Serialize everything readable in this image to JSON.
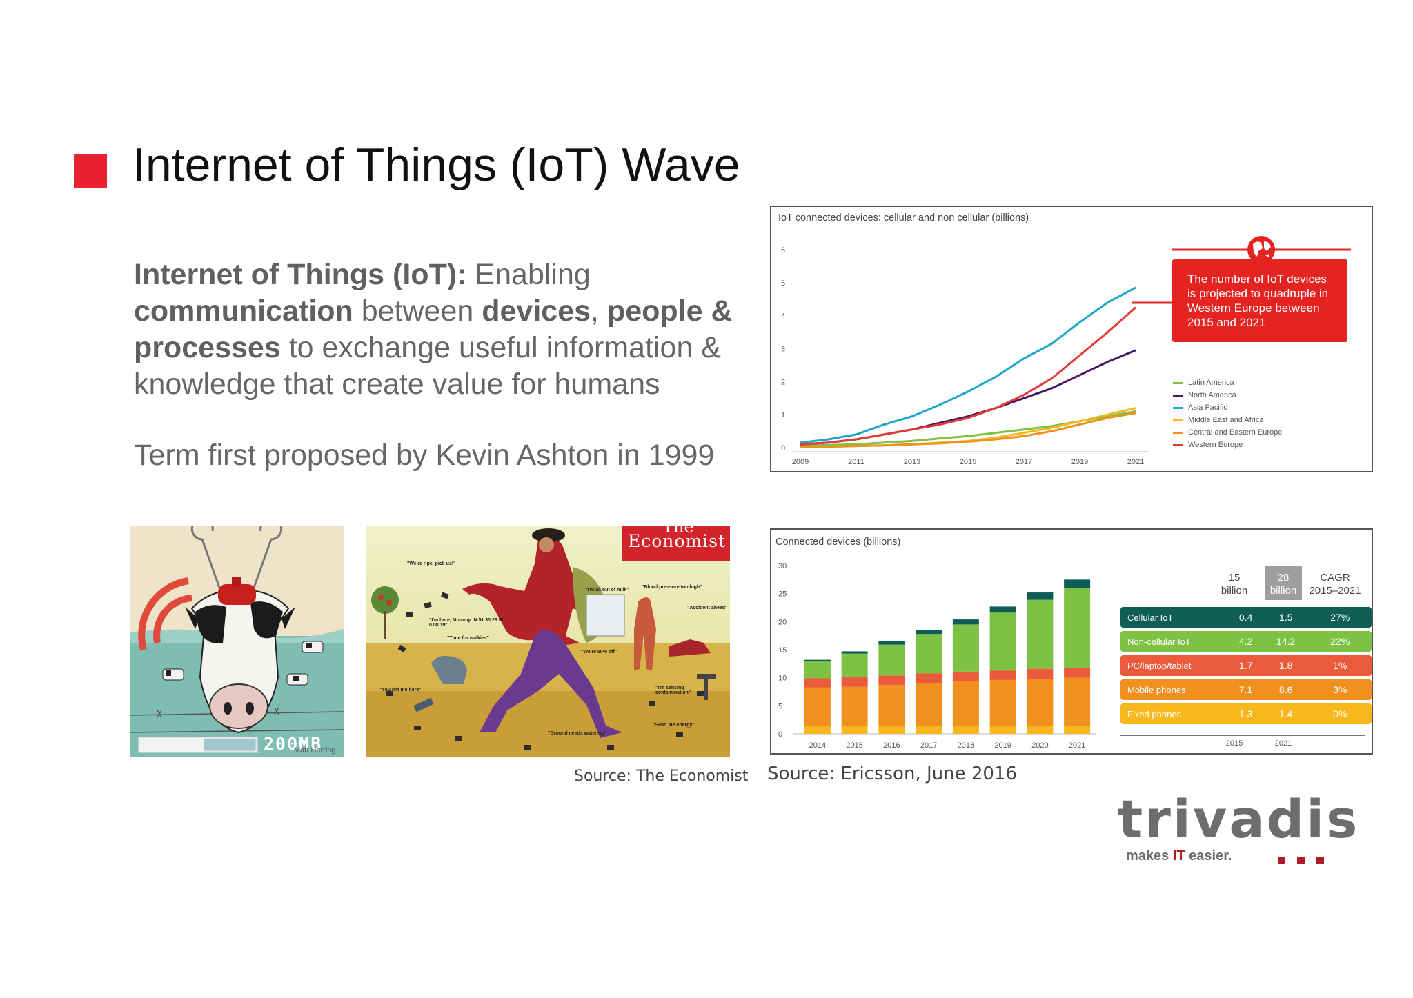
{
  "slide": {
    "title": "Internet of Things (IoT) Wave",
    "definition": {
      "term": "Internet of Things (IoT):",
      "t1": " Enabling ",
      "b1": "communication",
      "t2": " between ",
      "b2": "devices",
      "t3": ", ",
      "b3": "people & processes",
      "t4": " to exchange useful information & knowledge that create value for humans"
    },
    "term_origin": "Term first proposed by Kevin Ashton in 1999",
    "cow_image": {
      "progress_label": "200MB",
      "signature": "Matt Herring",
      "progress_fraction": 0.55
    },
    "economist_image": {
      "brand_top": "The",
      "brand": "Economist",
      "captions": [
        "\"We're ripe, pick us!\"",
        "\"I'm all out of milk\"",
        "\"Blood pressure too high\"",
        "\"Accident ahead\"",
        "\"I'm here, Mummy: N 51 30.26 W 0 08.19\"",
        "\"Time for walkies\"",
        "\"We're 50% off\"",
        "\"You left me here\"",
        "\"I'm sensing contamination\"",
        "\"Send me energy\"",
        "\"Ground needs watering\""
      ]
    },
    "source_economist": "Source: The Economist",
    "source_ericsson": "Source: Ericsson, June 2016",
    "logo": {
      "name": "trivadis",
      "tagline_a": "makes ",
      "tagline_b": "IT",
      "tagline_c": " easier."
    },
    "colors": {
      "accent_red": "#e8202f",
      "brand_red": "#b11b28",
      "brand_gray": "#6d6d6d"
    }
  },
  "chart_data": [
    {
      "type": "line",
      "title": "IoT connected devices: cellular and non cellular (billions)",
      "x": [
        2009,
        2010,
        2011,
        2012,
        2013,
        2014,
        2015,
        2016,
        2017,
        2018,
        2019,
        2020,
        2021
      ],
      "x_ticks": [
        "2009",
        "2011",
        "2013",
        "2015",
        "2017",
        "2019",
        "2021"
      ],
      "y_ticks": [
        "0",
        "1",
        "2",
        "3",
        "4",
        "5",
        "6"
      ],
      "ylim": [
        0,
        6
      ],
      "grid": false,
      "legend_position": "right",
      "series": [
        {
          "name": "Latin America",
          "color": "#7dc242",
          "values": [
            0.05,
            0.08,
            0.1,
            0.15,
            0.2,
            0.28,
            0.35,
            0.45,
            0.55,
            0.65,
            0.8,
            0.95,
            1.1
          ]
        },
        {
          "name": "North America",
          "color": "#4a1563",
          "values": [
            0.1,
            0.15,
            0.25,
            0.4,
            0.55,
            0.75,
            0.95,
            1.2,
            1.5,
            1.8,
            2.2,
            2.6,
            2.95
          ]
        },
        {
          "name": "Asia Pacific",
          "color": "#1ca6c9",
          "values": [
            0.15,
            0.25,
            0.4,
            0.7,
            0.95,
            1.3,
            1.7,
            2.15,
            2.7,
            3.15,
            3.8,
            4.4,
            4.85
          ]
        },
        {
          "name": "Middle East and Africa",
          "color": "#f7b81d",
          "values": [
            0.02,
            0.03,
            0.05,
            0.07,
            0.1,
            0.15,
            0.2,
            0.3,
            0.45,
            0.6,
            0.8,
            1.0,
            1.2
          ]
        },
        {
          "name": "Central and Eastern Europe",
          "color": "#f0901e",
          "values": [
            0.02,
            0.03,
            0.05,
            0.07,
            0.1,
            0.13,
            0.18,
            0.25,
            0.35,
            0.5,
            0.7,
            0.9,
            1.05
          ]
        },
        {
          "name": "Western Europe",
          "color": "#e23b36",
          "values": [
            0.1,
            0.15,
            0.25,
            0.4,
            0.55,
            0.7,
            0.9,
            1.2,
            1.6,
            2.1,
            2.8,
            3.5,
            4.25
          ]
        }
      ],
      "callout": "The number of IoT devices is projected to quadruple in Western Europe between 2015 and 2021"
    },
    {
      "type": "bar",
      "title": "Connected devices (billions)",
      "stacked": true,
      "categories": [
        "2014",
        "2015",
        "2016",
        "2017",
        "2018",
        "2019",
        "2020",
        "2021"
      ],
      "ylim": [
        0,
        30
      ],
      "y_ticks": [
        "0",
        "5",
        "10",
        "15",
        "20",
        "25",
        "30"
      ],
      "series": [
        {
          "name": "Fixed phones",
          "color": "#f7b81d",
          "values": [
            1.3,
            1.3,
            1.3,
            1.3,
            1.3,
            1.3,
            1.3,
            1.4
          ]
        },
        {
          "name": "Mobile phones",
          "color": "#f0901e",
          "values": [
            7.0,
            7.1,
            7.4,
            7.8,
            8.1,
            8.3,
            8.5,
            8.6
          ]
        },
        {
          "name": "PC/laptop/tablet",
          "color": "#ea5b3c",
          "values": [
            1.6,
            1.7,
            1.7,
            1.7,
            1.7,
            1.7,
            1.8,
            1.8
          ]
        },
        {
          "name": "Non-cellular IoT",
          "color": "#7dc242",
          "values": [
            3.0,
            4.2,
            5.5,
            7.0,
            8.4,
            10.3,
            12.3,
            14.2
          ]
        },
        {
          "name": "Cellular IoT",
          "color": "#0f5e56",
          "values": [
            0.3,
            0.4,
            0.6,
            0.7,
            0.9,
            1.1,
            1.3,
            1.5
          ]
        }
      ],
      "table": {
        "headers": {
          "h2015": "15 billion",
          "h2021": "28 billion",
          "cagr": "CAGR 2015–2021"
        },
        "footer": {
          "y2015": "2015",
          "y2021": "2021"
        },
        "rows": [
          {
            "label": "Cellular IoT",
            "v2015": "0.4",
            "v2021": "1.5",
            "cagr": "27%",
            "color": "#0f5e56"
          },
          {
            "label": "Non-cellular IoT",
            "v2015": "4.2",
            "v2021": "14.2",
            "cagr": "22%",
            "color": "#7dc242"
          },
          {
            "label": "PC/laptop/tablet",
            "v2015": "1.7",
            "v2021": "1.8",
            "cagr": "1%",
            "color": "#ea5b3c"
          },
          {
            "label": "Mobile phones",
            "v2015": "7.1",
            "v2021": "8.6",
            "cagr": "3%",
            "color": "#f0901e"
          },
          {
            "label": "Fixed phones",
            "v2015": "1.3",
            "v2021": "1.4",
            "cagr": "0%",
            "color": "#f7b81d"
          }
        ]
      }
    }
  ]
}
